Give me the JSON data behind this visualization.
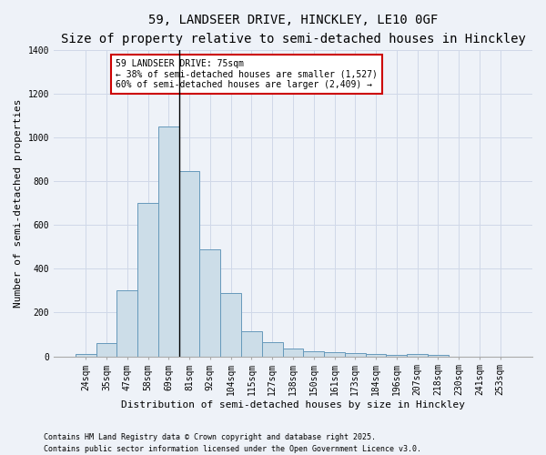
{
  "title_line1": "59, LANDSEER DRIVE, HINCKLEY, LE10 0GF",
  "title_line2": "Size of property relative to semi-detached houses in Hinckley",
  "xlabel": "Distribution of semi-detached houses by size in Hinckley",
  "ylabel": "Number of semi-detached properties",
  "annotation_title": "59 LANDSEER DRIVE: 75sqm",
  "annotation_line2": "← 38% of semi-detached houses are smaller (1,527)",
  "annotation_line3": "60% of semi-detached houses are larger (2,409) →",
  "footer_line1": "Contains HM Land Registry data © Crown copyright and database right 2025.",
  "footer_line2": "Contains public sector information licensed under the Open Government Licence v3.0.",
  "bar_labels": [
    "24sqm",
    "35sqm",
    "47sqm",
    "58sqm",
    "69sqm",
    "81sqm",
    "92sqm",
    "104sqm",
    "115sqm",
    "127sqm",
    "138sqm",
    "150sqm",
    "161sqm",
    "173sqm",
    "184sqm",
    "196sqm",
    "207sqm",
    "218sqm",
    "230sqm",
    "241sqm",
    "253sqm"
  ],
  "bar_values": [
    10,
    60,
    300,
    700,
    1050,
    845,
    490,
    290,
    115,
    65,
    35,
    25,
    20,
    15,
    10,
    5,
    10,
    5,
    0,
    0,
    0
  ],
  "bar_color": "#ccdde8",
  "bar_edge_color": "#6699bb",
  "property_line_index": 4.5,
  "ylim": [
    0,
    1400
  ],
  "yticks": [
    0,
    200,
    400,
    600,
    800,
    1000,
    1200,
    1400
  ],
  "background_color": "#eef2f8",
  "grid_color": "#d0d8e8",
  "annotation_box_color": "#ffffff",
  "annotation_box_edge": "#cc0000",
  "title_fontsize": 10,
  "subtitle_fontsize": 8,
  "ylabel_fontsize": 8,
  "xlabel_fontsize": 8,
  "tick_fontsize": 7,
  "annot_fontsize": 7,
  "footer_fontsize": 6
}
